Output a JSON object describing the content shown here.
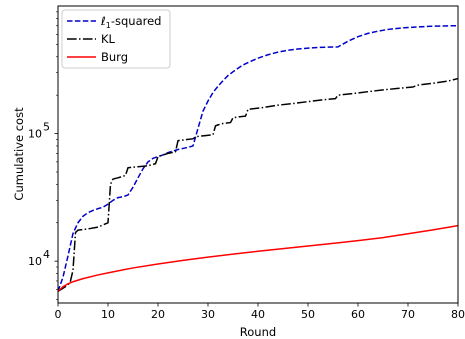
{
  "chart_data": {
    "type": "line",
    "xlabel": "Round",
    "ylabel": "Cumulative cost",
    "xlim": [
      0,
      80
    ],
    "ylim": [
      4700,
      1000000
    ],
    "yscale": "log",
    "grid": false,
    "legend_position": "top-left",
    "x_ticks": [
      0,
      10,
      20,
      30,
      40,
      50,
      60,
      70,
      80
    ],
    "x_tick_labels": [
      "0",
      "10",
      "20",
      "30",
      "40",
      "50",
      "60",
      "70",
      "80"
    ],
    "y_ticks": [
      10000,
      100000
    ],
    "y_tick_main": [
      "10",
      "10"
    ],
    "y_tick_exp": [
      "4",
      "5"
    ],
    "legend": {
      "l1_main": "ℓ",
      "l1_sub": "1",
      "l1_rest": "-squared",
      "kl": "KL",
      "burg": "Burg"
    },
    "series": [
      {
        "name": "ℓ1-squared",
        "color": "#0000cc",
        "dash": "dashed",
        "x": [
          0,
          1,
          2,
          3,
          4,
          5,
          6,
          7,
          8,
          9,
          10,
          11,
          12,
          13,
          14,
          15,
          16,
          17,
          18,
          19,
          20,
          21,
          22,
          23,
          24,
          25,
          26,
          27,
          28,
          29,
          30,
          31,
          32,
          33,
          34,
          35,
          36,
          37,
          38,
          39,
          40,
          42,
          44,
          46,
          48,
          50,
          52,
          54,
          56,
          58,
          60,
          62,
          64,
          66,
          68,
          70,
          72,
          74,
          76,
          78,
          80
        ],
        "y": [
          5800,
          7500,
          11000,
          16500,
          20000,
          22500,
          24000,
          25000,
          25800,
          26500,
          28000,
          30000,
          31500,
          32000,
          33000,
          38000,
          45000,
          53000,
          60000,
          64000,
          66000,
          68000,
          71000,
          73000,
          75000,
          76500,
          78000,
          80000,
          110000,
          150000,
          180000,
          210000,
          235000,
          260000,
          285000,
          305000,
          325000,
          345000,
          360000,
          375000,
          390000,
          415000,
          435000,
          450000,
          460000,
          468000,
          473000,
          476000,
          478000,
          530000,
          575000,
          610000,
          635000,
          655000,
          668000,
          678000,
          686000,
          692000,
          696000,
          699000,
          701000
        ]
      },
      {
        "name": "KL",
        "color": "#000000",
        "dash": "dashdot",
        "x": [
          0,
          2,
          2.5,
          3,
          3.5,
          4,
          6,
          8,
          10,
          10.5,
          11,
          12,
          13.5,
          14,
          16,
          18,
          19.5,
          20,
          21,
          22,
          23.5,
          24,
          26,
          27,
          27.5,
          28,
          29,
          31,
          31.5,
          32,
          33,
          34.5,
          35,
          36,
          37.5,
          38,
          41,
          44,
          47,
          50,
          53,
          55.5,
          56,
          59,
          62,
          65,
          68,
          71,
          72,
          75,
          78,
          80
        ],
        "y": [
          5800,
          6500,
          7000,
          8500,
          16800,
          17500,
          17900,
          18500,
          20000,
          40000,
          44000,
          45000,
          47000,
          54000,
          55000,
          56000,
          58000,
          66000,
          68000,
          70000,
          72000,
          88000,
          90000,
          91000,
          94000,
          95000,
          96000,
          98000,
          115000,
          117000,
          120000,
          122000,
          133000,
          135000,
          137000,
          155000,
          160000,
          167000,
          172000,
          178000,
          184000,
          188000,
          200000,
          206000,
          213000,
          220000,
          226000,
          232000,
          240000,
          248000,
          258000,
          270000
        ]
      },
      {
        "name": "Burg",
        "color": "#ff0000",
        "dash": "solid",
        "x": [
          0,
          1,
          2,
          3,
          5,
          8,
          10,
          15,
          20,
          25,
          30,
          35,
          40,
          45,
          50,
          55,
          60,
          65,
          70,
          75,
          80
        ],
        "y": [
          5800,
          6300,
          6650,
          6900,
          7300,
          7800,
          8100,
          8850,
          9500,
          10150,
          10750,
          11350,
          11950,
          12550,
          13150,
          13800,
          14500,
          15300,
          16400,
          17600,
          19000
        ]
      }
    ]
  }
}
